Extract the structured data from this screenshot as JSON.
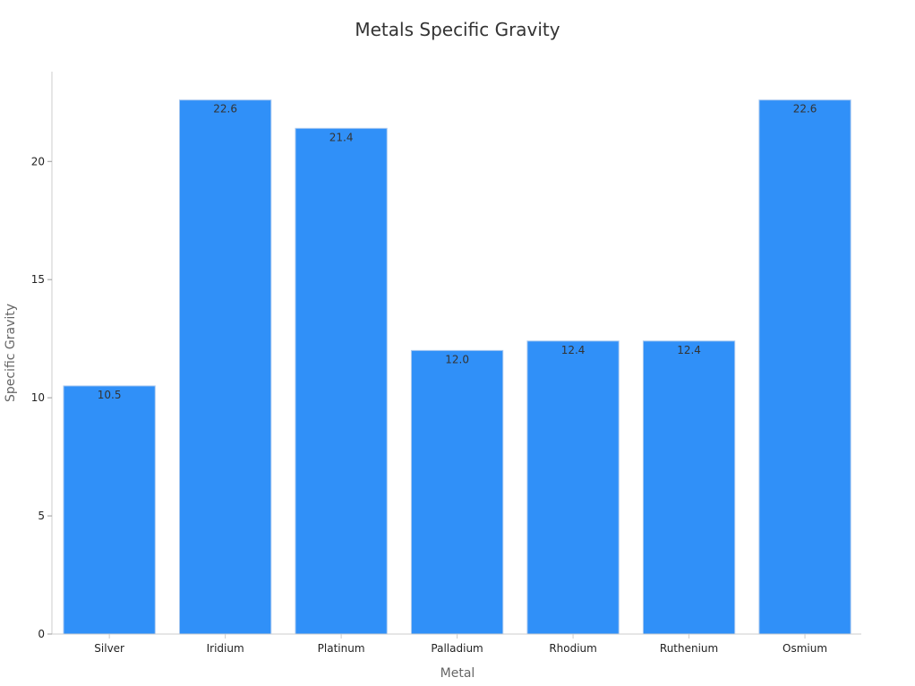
{
  "chart_data": {
    "type": "bar",
    "title": "Metals Specific Gravity",
    "xlabel": "Metal",
    "ylabel": "Specific Gravity",
    "categories": [
      "Silver",
      "Iridium",
      "Platinum",
      "Palladium",
      "Rhodium",
      "Ruthenium",
      "Osmium"
    ],
    "values": [
      10.5,
      22.6,
      21.4,
      12.0,
      12.4,
      12.4,
      22.6
    ],
    "data_labels": [
      "10.5",
      "22.6",
      "21.4",
      "12.0",
      "12.4",
      "12.4",
      "22.6"
    ],
    "yticks": [
      0,
      5,
      10,
      15,
      20
    ],
    "ylim": [
      0,
      23.8
    ],
    "grid": false,
    "legend": "none",
    "colors": {
      "bar": "#3090F8",
      "bar_edge": "#A8C8F0",
      "axis": "#CCCCCC"
    }
  }
}
